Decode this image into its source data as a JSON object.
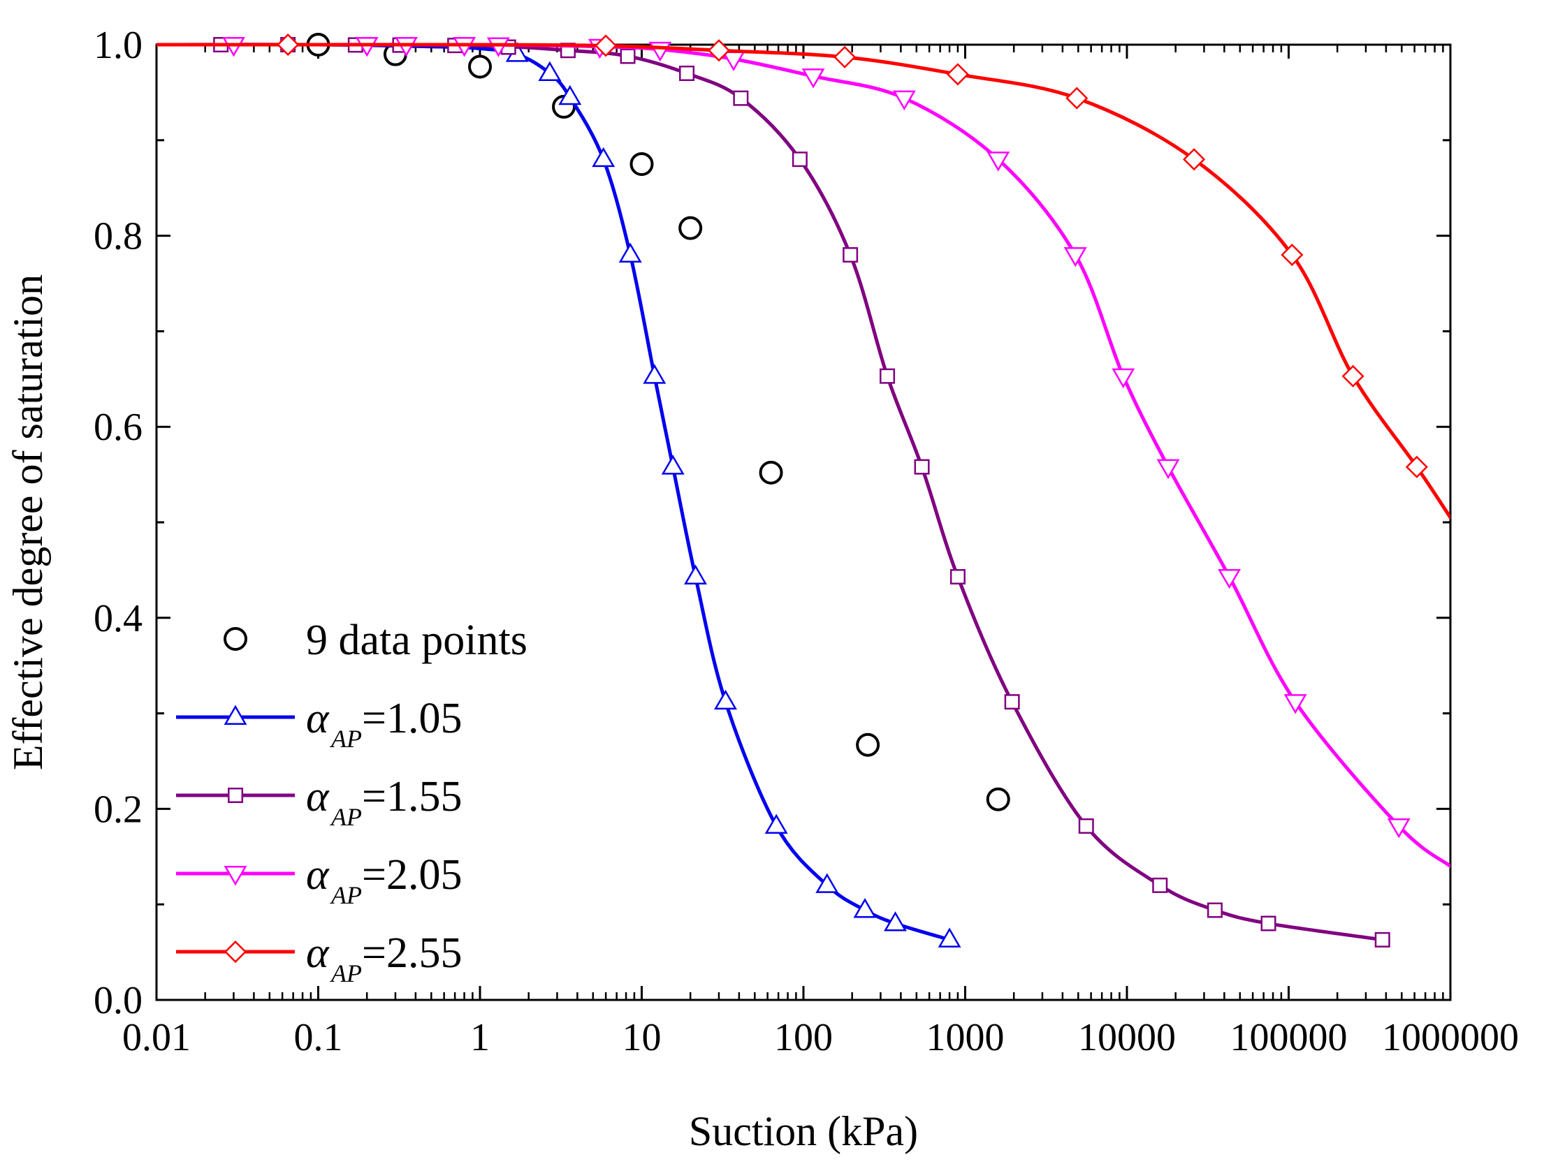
{
  "chart_data": {
    "type": "scatter",
    "title": "",
    "xlabel": "Suction (kPa)",
    "ylabel": "Effective degree of saturation",
    "xscale": "log",
    "xlim": [
      0.01,
      1000000
    ],
    "ylim": [
      0.0,
      1.0
    ],
    "grid": false,
    "legend_position": "bottom-left",
    "x_tick_labels": [
      "0.01",
      "0.1",
      "1",
      "10",
      "100",
      "1000",
      "10000",
      "100000",
      "1000000"
    ],
    "y_tick_labels": [
      "0.0",
      "0.2",
      "0.4",
      "0.6",
      "0.8",
      "1.0"
    ],
    "series": [
      {
        "name": "9 data points",
        "legend_label": "9 data points",
        "kind": "scatter",
        "marker": "circle",
        "color": "#000000",
        "points": [
          [
            0.1,
            1.0
          ],
          [
            0.3,
            0.99
          ],
          [
            1.0,
            0.977
          ],
          [
            3.3,
            0.935
          ],
          [
            10,
            0.875
          ],
          [
            20,
            0.808
          ],
          [
            63,
            0.552
          ],
          [
            250,
            0.267
          ],
          [
            1600,
            0.21
          ]
        ]
      },
      {
        "name": "αAP=1.05",
        "legend_symbol": "α",
        "legend_subscript": "AP",
        "legend_value": "=1.05",
        "kind": "line",
        "marker": "triangle-up",
        "color": "#0000ee",
        "points": [
          [
            0.01,
            1.0
          ],
          [
            0.1,
            1.0
          ],
          [
            0.5,
            0.998
          ],
          [
            1.0,
            0.996
          ],
          [
            1.7,
            0.99
          ],
          [
            2.7,
            0.97
          ],
          [
            3.6,
            0.945
          ],
          [
            5.8,
            0.88
          ],
          [
            8.5,
            0.78
          ],
          [
            12,
            0.653
          ],
          [
            15.6,
            0.558
          ],
          [
            21.5,
            0.443
          ],
          [
            33,
            0.312
          ],
          [
            68,
            0.182
          ],
          [
            140,
            0.12
          ],
          [
            240,
            0.094
          ],
          [
            370,
            0.08
          ],
          [
            800,
            0.063
          ]
        ],
        "marker_x": [
          1.7,
          2.7,
          3.6,
          5.8,
          8.5,
          12,
          15.6,
          21.5,
          33,
          68,
          140,
          240,
          370,
          800
        ]
      },
      {
        "name": "αAP=1.55",
        "legend_symbol": "α",
        "legend_subscript": "AP",
        "legend_value": "=1.55",
        "kind": "line",
        "marker": "square",
        "color": "#800080",
        "points": [
          [
            0.01,
            1.0
          ],
          [
            0.1,
            1.0
          ],
          [
            1.0,
            0.999
          ],
          [
            3.5,
            0.994
          ],
          [
            8.2,
            0.988
          ],
          [
            19,
            0.97
          ],
          [
            41,
            0.944
          ],
          [
            95,
            0.88
          ],
          [
            195,
            0.78
          ],
          [
            330,
            0.653
          ],
          [
            540,
            0.558
          ],
          [
            900,
            0.443
          ],
          [
            1950,
            0.312
          ],
          [
            5600,
            0.182
          ],
          [
            16000,
            0.12
          ],
          [
            35000,
            0.094
          ],
          [
            75000,
            0.08
          ],
          [
            380000,
            0.063
          ]
        ],
        "marker_x": [
          0.025,
          0.065,
          0.17,
          0.32,
          0.7,
          1.5,
          3.5,
          8.2,
          19,
          41,
          95,
          195,
          330,
          540,
          900,
          1950,
          5600,
          16000,
          35000,
          75000,
          380000
        ]
      },
      {
        "name": "αAP=2.05",
        "legend_symbol": "α",
        "legend_subscript": "AP",
        "legend_value": "=2.05",
        "kind": "line",
        "marker": "triangle-down",
        "color": "#ff00ff",
        "points": [
          [
            0.01,
            1.0
          ],
          [
            0.1,
            1.0
          ],
          [
            1.0,
            1.0
          ],
          [
            5.5,
            0.998
          ],
          [
            13,
            0.995
          ],
          [
            37,
            0.985
          ],
          [
            115,
            0.967
          ],
          [
            420,
            0.944
          ],
          [
            1600,
            0.88
          ],
          [
            4800,
            0.78
          ],
          [
            9500,
            0.653
          ],
          [
            18000,
            0.558
          ],
          [
            43000,
            0.443
          ],
          [
            110000,
            0.312
          ],
          [
            480000,
            0.182
          ],
          [
            1000000,
            0.14
          ]
        ],
        "marker_x": [
          0.03,
          0.2,
          0.35,
          0.8,
          1.3,
          5.5,
          13,
          37,
          115,
          420,
          1600,
          4800,
          9500,
          18000,
          43000,
          110000,
          480000
        ]
      },
      {
        "name": "αAP=2.55",
        "legend_symbol": "α",
        "legend_subscript": "AP",
        "legend_value": "=2.55",
        "kind": "line",
        "marker": "diamond",
        "color": "#ff0000",
        "points": [
          [
            0.01,
            1.0
          ],
          [
            0.1,
            1.0
          ],
          [
            1.0,
            1.0
          ],
          [
            6,
            0.999
          ],
          [
            30,
            0.994
          ],
          [
            180,
            0.987
          ],
          [
            900,
            0.969
          ],
          [
            4900,
            0.944
          ],
          [
            26000,
            0.88
          ],
          [
            105000,
            0.78
          ],
          [
            250000,
            0.653
          ],
          [
            620000,
            0.558
          ],
          [
            1000000,
            0.505
          ]
        ],
        "marker_x": [
          0.065,
          6,
          30,
          180,
          900,
          4900,
          26000,
          105000,
          250000,
          620000
        ]
      }
    ]
  }
}
